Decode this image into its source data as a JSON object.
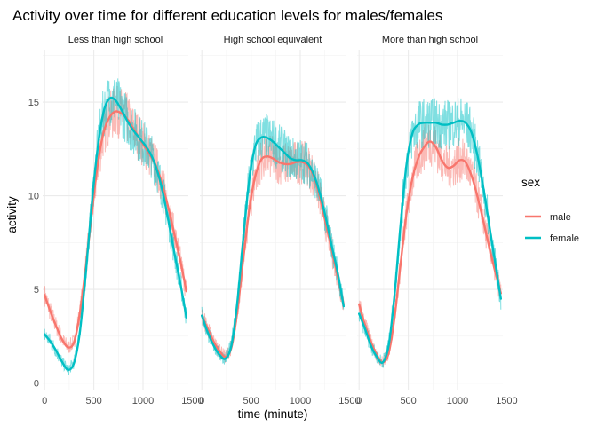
{
  "chart_data": {
    "type": "line",
    "title": "Activity over time for different education levels for males/females",
    "xlabel": "time (minute)",
    "ylabel": "activity",
    "xlim": [
      -20,
      1460
    ],
    "ylim": [
      -0.4,
      17.8
    ],
    "xticks": [
      0,
      500,
      1000,
      1500
    ],
    "yticks": [
      0,
      5,
      10,
      15
    ],
    "grid": true,
    "legend": {
      "title": "sex",
      "position": "right",
      "entries": [
        {
          "label": "male",
          "color": "#F8766D"
        },
        {
          "label": "female",
          "color": "#00BFC4"
        }
      ]
    },
    "facets": [
      {
        "label": "Less than high school",
        "series": [
          {
            "name": "male",
            "color": "#F8766D",
            "x": [
              0,
              60,
              120,
              180,
              240,
              300,
              360,
              420,
              480,
              540,
              600,
              660,
              720,
              780,
              840,
              900,
              960,
              1020,
              1080,
              1140,
              1200,
              1260,
              1320,
              1380,
              1440
            ],
            "smooth": [
              4.7,
              3.8,
              3.0,
              2.3,
              1.9,
              2.2,
              3.8,
              6.3,
              9.1,
              11.7,
              13.4,
              14.2,
              14.5,
              14.4,
              14.1,
              13.6,
              13.1,
              12.6,
              12.1,
              11.5,
              10.5,
              9.3,
              7.9,
              6.5,
              4.9
            ]
          },
          {
            "name": "female",
            "color": "#00BFC4",
            "x": [
              0,
              60,
              120,
              180,
              240,
              300,
              360,
              420,
              480,
              540,
              600,
              660,
              720,
              780,
              840,
              900,
              960,
              1020,
              1080,
              1140,
              1200,
              1260,
              1320,
              1380,
              1440
            ],
            "smooth": [
              2.6,
              2.2,
              1.7,
              1.1,
              0.7,
              1.1,
              2.8,
              6.0,
              9.6,
              12.6,
              14.5,
              15.2,
              15.1,
              14.6,
              14.0,
              13.5,
              13.1,
              12.7,
              12.2,
              11.4,
              10.2,
              8.6,
              6.9,
              5.3,
              3.5
            ]
          }
        ]
      },
      {
        "label": "High school equivalent",
        "series": [
          {
            "name": "male",
            "color": "#F8766D",
            "x": [
              0,
              60,
              120,
              180,
              240,
              300,
              360,
              420,
              480,
              540,
              600,
              660,
              720,
              780,
              840,
              900,
              960,
              1020,
              1080,
              1140,
              1200,
              1260,
              1320,
              1380,
              1440
            ],
            "smooth": [
              3.6,
              2.9,
              2.2,
              1.7,
              1.4,
              1.9,
              3.8,
              6.6,
              9.2,
              11.0,
              11.9,
              12.1,
              12.0,
              11.8,
              11.7,
              11.7,
              11.8,
              11.8,
              11.6,
              11.0,
              9.9,
              8.5,
              7.1,
              5.7,
              4.2
            ]
          },
          {
            "name": "female",
            "color": "#00BFC4",
            "x": [
              0,
              60,
              120,
              180,
              240,
              300,
              360,
              420,
              480,
              540,
              600,
              660,
              720,
              780,
              840,
              900,
              960,
              1020,
              1080,
              1140,
              1200,
              1260,
              1320,
              1380,
              1440
            ],
            "smooth": [
              3.6,
              2.7,
              2.0,
              1.5,
              1.3,
              2.0,
              4.3,
              7.7,
              10.8,
              12.6,
              13.1,
              13.1,
              12.9,
              12.6,
              12.3,
              12.0,
              11.9,
              11.9,
              11.7,
              11.1,
              10.1,
              8.8,
              7.3,
              5.9,
              4.1
            ]
          }
        ]
      },
      {
        "label": "More than high school",
        "series": [
          {
            "name": "male",
            "color": "#F8766D",
            "x": [
              0,
              60,
              120,
              180,
              240,
              300,
              360,
              420,
              480,
              540,
              600,
              660,
              720,
              780,
              840,
              900,
              960,
              1020,
              1080,
              1140,
              1200,
              1260,
              1320,
              1380,
              1440
            ],
            "smooth": [
              4.2,
              3.1,
              2.2,
              1.5,
              1.1,
              1.6,
              3.5,
              6.3,
              9.0,
              10.9,
              12.0,
              12.6,
              12.9,
              12.6,
              11.9,
              11.5,
              11.6,
              11.9,
              11.8,
              11.1,
              10.0,
              8.7,
              7.3,
              6.0,
              4.8
            ]
          },
          {
            "name": "female",
            "color": "#00BFC4",
            "x": [
              0,
              60,
              120,
              180,
              240,
              300,
              360,
              420,
              480,
              540,
              600,
              660,
              720,
              780,
              840,
              900,
              960,
              1020,
              1080,
              1140,
              1200,
              1260,
              1320,
              1380,
              1440
            ],
            "smooth": [
              3.7,
              2.9,
              2.0,
              1.4,
              1.1,
              2.0,
              4.7,
              8.4,
              11.6,
              13.3,
              13.8,
              13.9,
              13.9,
              13.9,
              13.8,
              13.8,
              13.9,
              14.0,
              13.9,
              13.4,
              12.2,
              10.5,
              8.5,
              6.5,
              4.5
            ]
          }
        ]
      }
    ]
  }
}
